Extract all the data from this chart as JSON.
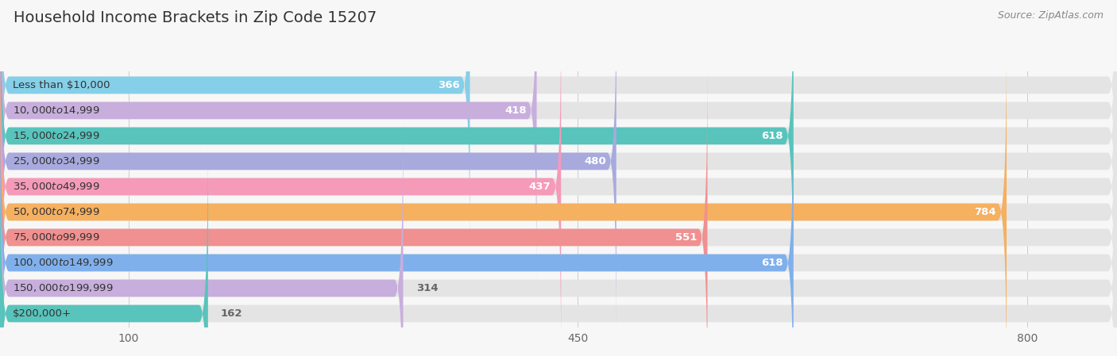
{
  "title": "Household Income Brackets in Zip Code 15207",
  "source": "Source: ZipAtlas.com",
  "categories": [
    "Less than $10,000",
    "$10,000 to $14,999",
    "$15,000 to $24,999",
    "$25,000 to $34,999",
    "$35,000 to $49,999",
    "$50,000 to $74,999",
    "$75,000 to $99,999",
    "$100,000 to $149,999",
    "$150,000 to $199,999",
    "$200,000+"
  ],
  "values": [
    366,
    418,
    618,
    480,
    437,
    784,
    551,
    618,
    314,
    162
  ],
  "bar_colors": [
    "#85cfe8",
    "#c8aedc",
    "#58c4bc",
    "#a8aade",
    "#f59ab8",
    "#f5b060",
    "#f09090",
    "#80b0ec",
    "#c8aedc",
    "#58c4bc"
  ],
  "value_inside_color": "#ffffff",
  "value_outside_color": "#666666",
  "inside_threshold": 350,
  "xlim_max": 870,
  "xticks": [
    100,
    450,
    800
  ],
  "bg_color": "#f7f7f7",
  "bar_bg_color": "#e4e4e4",
  "title_fontsize": 14,
  "source_fontsize": 9,
  "cat_fontsize": 9.5,
  "val_fontsize": 9.5,
  "tick_fontsize": 10
}
